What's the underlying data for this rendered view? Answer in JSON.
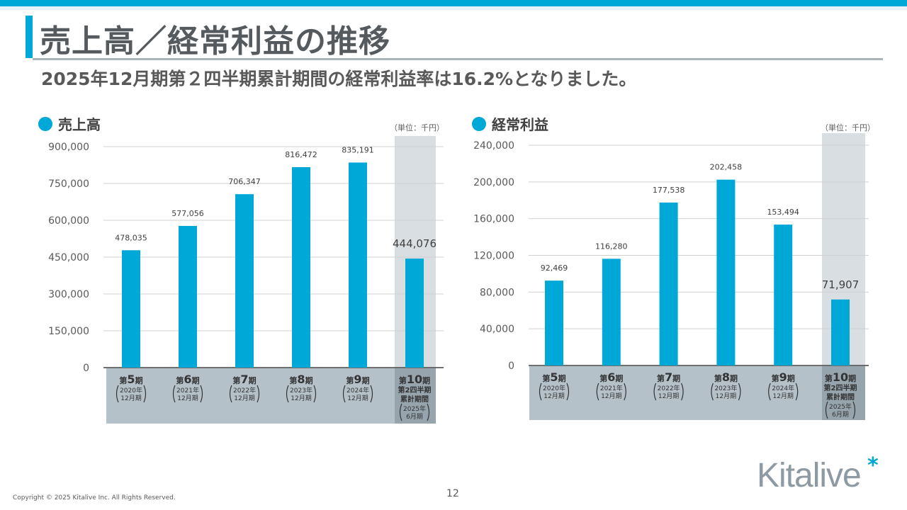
{
  "header": {
    "title": "売上高／経常利益の推移",
    "subtitle": "2025年12月期第２四半期累計期間の経常利益率は16.2%となりました。"
  },
  "footer": {
    "copyright": "Copyright © 2025 Kitalive Inc. All Rights Reserved.",
    "page_number": "12",
    "logo": "Kitalive",
    "logo_mark": "*"
  },
  "colors": {
    "accent": "#00a8d8",
    "bar": "#00a8d8",
    "highlight_column": "#d9dee2",
    "category_band": "#b4c1c8",
    "category_band_highlight": "#96a4ad"
  },
  "chart_data": [
    {
      "type": "bar",
      "title": "売上高",
      "unit": "（単位：千円）",
      "ylim": [
        0,
        900000
      ],
      "yticks": [
        "0",
        "150,000",
        "300,000",
        "450,000",
        "600,000",
        "750,000",
        "900,000"
      ],
      "ytick_values": [
        0,
        150000,
        300000,
        450000,
        600000,
        750000,
        900000
      ],
      "grid": true,
      "categories": [
        {
          "term": "5",
          "lines": [
            "2020年",
            "12月期"
          ]
        },
        {
          "term": "6",
          "lines": [
            "2021年",
            "12月期"
          ]
        },
        {
          "term": "7",
          "lines": [
            "2022年",
            "12月期"
          ]
        },
        {
          "term": "8",
          "lines": [
            "2023年",
            "12月期"
          ]
        },
        {
          "term": "9",
          "lines": [
            "2024年",
            "12月期"
          ]
        },
        {
          "term": "10",
          "sub": [
            "第2四半期",
            "累計期間"
          ],
          "lines": [
            "2025年",
            "6月期"
          ],
          "highlight": true
        }
      ],
      "term_prefix": "第",
      "term_suffix": "期",
      "values": [
        478035,
        577056,
        706347,
        816472,
        835191,
        444076
      ],
      "labels": [
        "478,035",
        "577,056",
        "706,347",
        "816,472",
        "835,191",
        "444,076"
      ]
    },
    {
      "type": "bar",
      "title": "経常利益",
      "unit": "（単位：千円）",
      "ylim": [
        0,
        240000
      ],
      "yticks": [
        "0",
        "40,000",
        "80,000",
        "120,000",
        "160,000",
        "200,000",
        "240,000"
      ],
      "ytick_values": [
        0,
        40000,
        80000,
        120000,
        160000,
        200000,
        240000
      ],
      "grid": true,
      "categories": [
        {
          "term": "5",
          "lines": [
            "2020年",
            "12月期"
          ]
        },
        {
          "term": "6",
          "lines": [
            "2021年",
            "12月期"
          ]
        },
        {
          "term": "7",
          "lines": [
            "2022年",
            "12月期"
          ]
        },
        {
          "term": "8",
          "lines": [
            "2023年",
            "12月期"
          ]
        },
        {
          "term": "9",
          "lines": [
            "2024年",
            "12月期"
          ]
        },
        {
          "term": "10",
          "sub": [
            "第2四半期",
            "累計期間"
          ],
          "lines": [
            "2025年",
            "6月期"
          ],
          "highlight": true
        }
      ],
      "term_prefix": "第",
      "term_suffix": "期",
      "values": [
        92469,
        116280,
        177538,
        202458,
        153494,
        71907
      ],
      "labels": [
        "92,469",
        "116,280",
        "177,538",
        "202,458",
        "153,494",
        "71,907"
      ]
    }
  ]
}
